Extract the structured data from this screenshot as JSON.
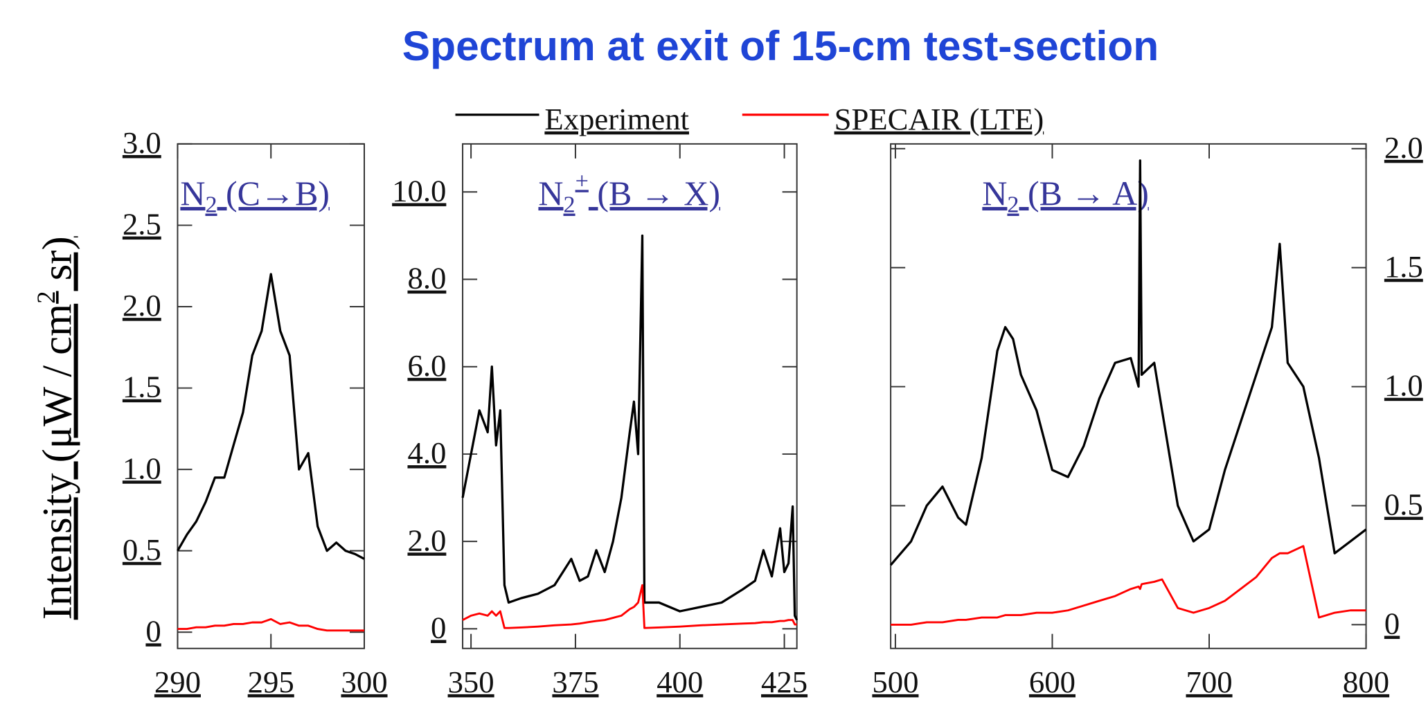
{
  "title": "Spectrum at exit of 15-cm test-section",
  "ylabel": {
    "text": "Intensity (μW / cm",
    "sup": "2",
    "rest": " sr)"
  },
  "chart_data": [
    {
      "type": "line",
      "yaxis_side": "left",
      "label": {
        "base": "N",
        "sub": "2",
        "rest": " (C→B)"
      },
      "x": [
        290,
        290.5,
        291,
        291.5,
        292,
        292.5,
        293,
        293.5,
        294,
        294.5,
        295,
        295.5,
        296,
        296.5,
        297,
        297.5,
        298,
        298.5,
        299,
        299.5,
        300
      ],
      "series": [
        {
          "name": "Experiment",
          "color": "#000000",
          "values": [
            0.5,
            0.6,
            0.68,
            0.8,
            0.95,
            0.95,
            1.15,
            1.35,
            1.7,
            1.85,
            2.2,
            1.85,
            1.7,
            1.0,
            1.1,
            0.65,
            0.5,
            0.55,
            0.5,
            0.48,
            0.45
          ]
        },
        {
          "name": "SPECAIR (LTE)",
          "color": "#ff0000",
          "values": [
            0.02,
            0.02,
            0.03,
            0.03,
            0.04,
            0.04,
            0.05,
            0.05,
            0.06,
            0.06,
            0.08,
            0.05,
            0.06,
            0.04,
            0.04,
            0.02,
            0.01,
            0.01,
            0.01,
            0.01,
            0.01
          ]
        }
      ],
      "xlim": [
        290,
        300
      ],
      "xticks": [
        290,
        295,
        300
      ],
      "ylim": [
        -0.1,
        3.0
      ],
      "yticks": [
        0,
        {
          "value": 0.5,
          "label": "0.5"
        },
        {
          "value": 1,
          "label": "1.0"
        },
        {
          "value": 1.5,
          "label": "1.5"
        },
        {
          "value": 2,
          "label": "2.0"
        },
        {
          "value": 2.5,
          "label": "2.5"
        },
        {
          "value": 3,
          "label": "3.0"
        }
      ]
    },
    {
      "type": "line",
      "yaxis_side": "left",
      "label": {
        "base": "N",
        "sub": "2",
        "sup": "+",
        "rest": " (B → X)"
      },
      "x": [
        348,
        350,
        352,
        354,
        355,
        356,
        357,
        358,
        359,
        362,
        366,
        370,
        374,
        376,
        378,
        380,
        382,
        384,
        386,
        388,
        389,
        390,
        391,
        391.5,
        395,
        400,
        405,
        410,
        415,
        418,
        420,
        422,
        424,
        425,
        426,
        427,
        427.5,
        428
      ],
      "series": [
        {
          "name": "Experiment",
          "color": "#000000",
          "values": [
            3.0,
            4.0,
            5.0,
            4.5,
            6.0,
            4.2,
            5.0,
            1.0,
            0.6,
            0.7,
            0.8,
            1.0,
            1.6,
            1.1,
            1.2,
            1.8,
            1.3,
            2.0,
            3.0,
            4.5,
            5.2,
            4.0,
            9.0,
            0.6,
            0.6,
            0.4,
            0.5,
            0.6,
            0.9,
            1.1,
            1.8,
            1.2,
            2.3,
            1.3,
            1.5,
            2.8,
            0.3,
            0.2
          ]
        },
        {
          "name": "SPECAIR (LTE)",
          "color": "#ff0000",
          "values": [
            0.2,
            0.3,
            0.35,
            0.3,
            0.4,
            0.3,
            0.4,
            0.02,
            0.02,
            0.03,
            0.05,
            0.08,
            0.1,
            0.12,
            0.15,
            0.18,
            0.2,
            0.25,
            0.3,
            0.45,
            0.5,
            0.6,
            1.0,
            0.02,
            0.03,
            0.05,
            0.08,
            0.1,
            0.12,
            0.13,
            0.15,
            0.15,
            0.18,
            0.18,
            0.2,
            0.2,
            0.1,
            0.1
          ]
        }
      ],
      "xlim": [
        348,
        428
      ],
      "xticks": [
        350,
        375,
        400,
        425
      ],
      "ylim": [
        -0.45,
        11.1
      ],
      "yticks": [
        0,
        {
          "value": 2,
          "label": "2.0"
        },
        {
          "value": 4,
          "label": "4.0"
        },
        {
          "value": 6,
          "label": "6.0"
        },
        {
          "value": 8,
          "label": "8.0"
        },
        {
          "value": 10,
          "label": "10.0"
        }
      ]
    },
    {
      "type": "line",
      "yaxis_side": "right",
      "label": {
        "base": "N",
        "sub": "2",
        "rest": " (B → A)"
      },
      "x": [
        497,
        510,
        520,
        530,
        540,
        545,
        555,
        565,
        570,
        575,
        580,
        590,
        600,
        610,
        620,
        630,
        640,
        650,
        655,
        656,
        657,
        665,
        670,
        680,
        690,
        700,
        710,
        720,
        730,
        740,
        745,
        750,
        760,
        770,
        780,
        790,
        800
      ],
      "series": [
        {
          "name": "Experiment",
          "color": "#000000",
          "values": [
            0.25,
            0.35,
            0.5,
            0.58,
            0.45,
            0.42,
            0.7,
            1.15,
            1.25,
            1.2,
            1.05,
            0.9,
            0.65,
            0.62,
            0.75,
            0.95,
            1.1,
            1.12,
            1.0,
            1.95,
            1.05,
            1.1,
            0.9,
            0.5,
            0.35,
            0.4,
            0.65,
            0.85,
            1.05,
            1.25,
            1.6,
            1.1,
            1.0,
            0.7,
            0.3,
            0.35,
            0.4
          ]
        },
        {
          "name": "SPECAIR (LTE)",
          "color": "#ff0000",
          "values": [
            0.0,
            0.0,
            0.01,
            0.01,
            0.02,
            0.02,
            0.03,
            0.03,
            0.04,
            0.04,
            0.04,
            0.05,
            0.05,
            0.06,
            0.08,
            0.1,
            0.12,
            0.15,
            0.16,
            0.15,
            0.17,
            0.18,
            0.19,
            0.07,
            0.05,
            0.07,
            0.1,
            0.15,
            0.2,
            0.28,
            0.3,
            0.3,
            0.33,
            0.03,
            0.05,
            0.06,
            0.06
          ]
        }
      ],
      "xlim": [
        497,
        800
      ],
      "xticks": [
        500,
        600,
        700,
        800
      ],
      "ylim": [
        -0.1,
        2.02
      ],
      "yticks": [
        0,
        {
          "value": 0.5,
          "label": "0.5"
        },
        {
          "value": 1,
          "label": "1.0"
        },
        {
          "value": 1.5,
          "label": "1.5"
        },
        {
          "value": 2,
          "label": "2.0"
        }
      ]
    }
  ]
}
